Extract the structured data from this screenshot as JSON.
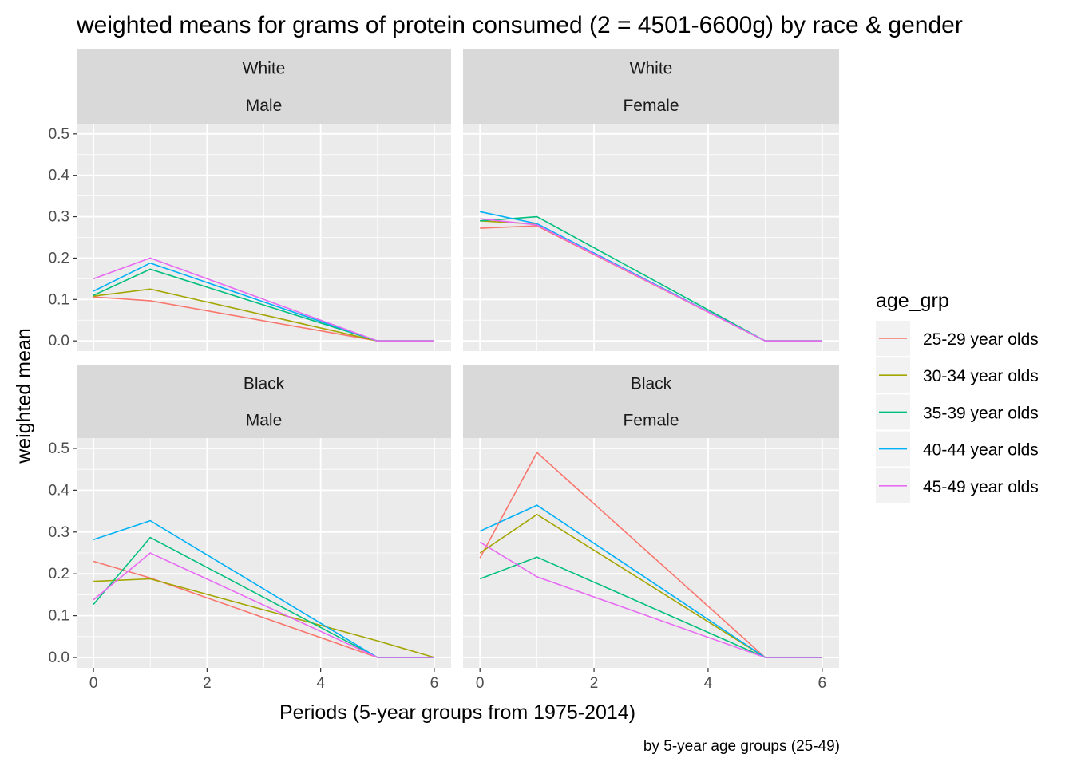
{
  "chart_data": {
    "type": "line",
    "title": "weighted means for grams of protein consumed (2 = 4501-6600g) by race & gender",
    "xlabel": "Periods (5-year groups from 1975-2014)",
    "ylabel": "weighted mean",
    "caption": "by 5-year age groups (25-49)",
    "xlim": [
      0,
      6
    ],
    "ylim": [
      0,
      0.5
    ],
    "x_ticks": [
      "0",
      "2",
      "4",
      "6"
    ],
    "y_ticks": [
      "0.0",
      "0.1",
      "0.2",
      "0.3",
      "0.4",
      "0.5"
    ],
    "grid": true,
    "legend": {
      "title": "age_grp",
      "placement": "right",
      "entries": [
        "25-29 year olds",
        "30-34 year olds",
        "35-39 year olds",
        "40-44 year olds",
        "45-49 year olds"
      ]
    },
    "series_colors": [
      "#F8766D",
      "#A3A500",
      "#00BF7D",
      "#00B0F6",
      "#E76BF3"
    ],
    "panels": [
      {
        "race": "White",
        "gender": "Male",
        "series": [
          {
            "name": "25-29 year olds",
            "x": [
              0,
              1,
              5,
              6
            ],
            "y": [
              0.106,
              0.097,
              0.0,
              0.0
            ]
          },
          {
            "name": "30-34 year olds",
            "x": [
              0,
              1,
              5,
              6
            ],
            "y": [
              0.108,
              0.125,
              0.0,
              0.0
            ]
          },
          {
            "name": "35-39 year olds",
            "x": [
              0,
              1,
              5,
              6
            ],
            "y": [
              0.11,
              0.173,
              0.0,
              0.0
            ]
          },
          {
            "name": "40-44 year olds",
            "x": [
              0,
              1,
              5,
              6
            ],
            "y": [
              0.12,
              0.188,
              0.0,
              0.0
            ]
          },
          {
            "name": "45-49 year olds",
            "x": [
              0,
              1,
              5,
              6
            ],
            "y": [
              0.15,
              0.2,
              0.0,
              0.0
            ]
          }
        ]
      },
      {
        "race": "White",
        "gender": "Female",
        "series": [
          {
            "name": "25-29 year olds",
            "x": [
              0,
              1,
              5,
              6
            ],
            "y": [
              0.272,
              0.278,
              0.0,
              0.0
            ]
          },
          {
            "name": "30-34 year olds",
            "x": [
              0,
              1,
              5,
              6
            ],
            "y": [
              0.29,
              0.282,
              0.0,
              0.0
            ]
          },
          {
            "name": "35-39 year olds",
            "x": [
              0,
              1,
              5,
              6
            ],
            "y": [
              0.29,
              0.3,
              0.0,
              0.0
            ]
          },
          {
            "name": "40-44 year olds",
            "x": [
              0,
              1,
              5,
              6
            ],
            "y": [
              0.312,
              0.283,
              0.0,
              0.0
            ]
          },
          {
            "name": "45-49 year olds",
            "x": [
              0,
              1,
              5,
              6
            ],
            "y": [
              0.295,
              0.28,
              0.0,
              0.0
            ]
          }
        ]
      },
      {
        "race": "Black",
        "gender": "Male",
        "series": [
          {
            "name": "25-29 year olds",
            "x": [
              0,
              1,
              5,
              6
            ],
            "y": [
              0.23,
              0.19,
              0.0,
              0.0
            ]
          },
          {
            "name": "30-34 year olds",
            "x": [
              0,
              1,
              5,
              6
            ],
            "y": [
              0.182,
              0.188,
              0.04,
              0.0
            ]
          },
          {
            "name": "35-39 year olds",
            "x": [
              0,
              1,
              5,
              6
            ],
            "y": [
              0.127,
              0.287,
              0.0,
              0.0
            ]
          },
          {
            "name": "40-44 year olds",
            "x": [
              0,
              1,
              5,
              6
            ],
            "y": [
              0.282,
              0.327,
              0.0,
              0.0
            ]
          },
          {
            "name": "45-49 year olds",
            "x": [
              0,
              1,
              5,
              6
            ],
            "y": [
              0.138,
              0.25,
              0.0,
              0.0
            ]
          }
        ]
      },
      {
        "race": "Black",
        "gender": "Female",
        "series": [
          {
            "name": "25-29 year olds",
            "x": [
              0,
              1,
              5,
              6
            ],
            "y": [
              0.238,
              0.49,
              0.0,
              0.0
            ]
          },
          {
            "name": "30-34 year olds",
            "x": [
              0,
              1,
              5,
              6
            ],
            "y": [
              0.25,
              0.342,
              0.0,
              0.0
            ]
          },
          {
            "name": "35-39 year olds",
            "x": [
              0,
              1,
              5,
              6
            ],
            "y": [
              0.188,
              0.24,
              0.0,
              0.0
            ]
          },
          {
            "name": "40-44 year olds",
            "x": [
              0,
              1,
              5,
              6
            ],
            "y": [
              0.302,
              0.364,
              0.0,
              0.0
            ]
          },
          {
            "name": "45-49 year olds",
            "x": [
              0,
              1,
              5,
              6
            ],
            "y": [
              0.276,
              0.193,
              0.0,
              0.0
            ]
          }
        ]
      }
    ]
  }
}
